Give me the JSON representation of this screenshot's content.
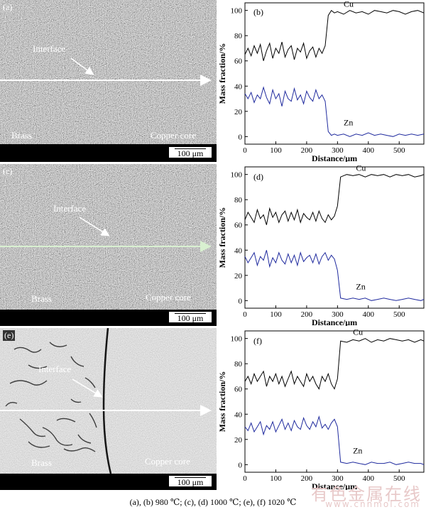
{
  "panels": [
    {
      "micro": {
        "label": "(a)",
        "interface": "Interface",
        "left_material": "Brass",
        "right_material": "Copper core",
        "scale": "100 μm",
        "line_color": "#ffffff",
        "style": "dark"
      },
      "chart": {
        "label": "(b)"
      }
    },
    {
      "micro": {
        "label": "(c)",
        "interface": "Interface",
        "left_material": "Brass",
        "right_material": "Copper core",
        "scale": "100 μm",
        "line_color": "#d8f0d0",
        "style": "dark"
      },
      "chart": {
        "label": "(d)"
      }
    },
    {
      "micro": {
        "label": "(e)",
        "interface": "Interface",
        "left_material": "Brass",
        "right_material": "Copper core",
        "scale": "100 μm",
        "line_color": "#ffffff",
        "style": "light"
      },
      "chart": {
        "label": "(f)"
      }
    }
  ],
  "chart_data": [
    {
      "type": "line",
      "xlabel": "Distance/μm",
      "ylabel": "Mass fraction/%",
      "xlim": [
        0,
        580
      ],
      "ylim": [
        -6,
        106
      ],
      "xticks": [
        0,
        100,
        200,
        300,
        400,
        500
      ],
      "yticks": [
        0,
        20,
        40,
        60,
        80,
        100
      ],
      "transition": 270,
      "series": [
        {
          "name": "Cu",
          "color": "#000000",
          "x": [
            0,
            10,
            20,
            30,
            40,
            50,
            60,
            70,
            80,
            90,
            100,
            110,
            120,
            130,
            140,
            150,
            160,
            170,
            180,
            190,
            200,
            210,
            220,
            230,
            240,
            250,
            260,
            270,
            280,
            290,
            300,
            320,
            340,
            360,
            380,
            400,
            420,
            440,
            460,
            480,
            500,
            520,
            540,
            560,
            580
          ],
          "y": [
            65,
            70,
            64,
            72,
            66,
            73,
            60,
            68,
            74,
            62,
            70,
            66,
            75,
            63,
            69,
            72,
            61,
            70,
            67,
            74,
            62,
            68,
            71,
            63,
            70,
            66,
            72,
            96,
            100,
            98,
            99,
            97,
            100,
            98,
            99,
            97,
            100,
            99,
            98,
            100,
            99,
            97,
            99,
            100,
            98
          ]
        },
        {
          "name": "Zn",
          "color": "#1f2a9e",
          "x": [
            0,
            10,
            20,
            30,
            40,
            50,
            60,
            70,
            80,
            90,
            100,
            110,
            120,
            130,
            140,
            150,
            160,
            170,
            180,
            190,
            200,
            210,
            220,
            230,
            240,
            250,
            260,
            270,
            280,
            290,
            300,
            320,
            340,
            360,
            380,
            400,
            420,
            440,
            460,
            480,
            500,
            520,
            540,
            560,
            580
          ],
          "y": [
            34,
            30,
            35,
            27,
            33,
            30,
            39,
            31,
            26,
            37,
            30,
            34,
            24,
            36,
            30,
            28,
            38,
            29,
            33,
            26,
            36,
            31,
            28,
            37,
            30,
            33,
            28,
            4,
            1,
            2,
            1,
            2,
            0,
            2,
            1,
            3,
            1,
            2,
            1,
            0,
            2,
            1,
            2,
            1,
            2
          ]
        }
      ]
    },
    {
      "type": "line",
      "xlabel": "Distance/μm",
      "ylabel": "Mass fraction/%",
      "xlim": [
        0,
        580
      ],
      "ylim": [
        -6,
        106
      ],
      "xticks": [
        0,
        100,
        200,
        300,
        400,
        500
      ],
      "yticks": [
        0,
        20,
        40,
        60,
        80,
        100
      ],
      "transition": 310,
      "series": [
        {
          "name": "Cu",
          "color": "#000000",
          "x": [
            0,
            10,
            20,
            30,
            40,
            50,
            60,
            70,
            80,
            90,
            100,
            110,
            120,
            130,
            140,
            150,
            160,
            170,
            180,
            190,
            200,
            210,
            220,
            230,
            240,
            250,
            260,
            270,
            280,
            290,
            300,
            310,
            330,
            350,
            370,
            390,
            410,
            430,
            450,
            470,
            490,
            510,
            530,
            550,
            570,
            580
          ],
          "y": [
            64,
            70,
            66,
            62,
            72,
            65,
            68,
            60,
            73,
            66,
            70,
            62,
            68,
            71,
            63,
            70,
            64,
            72,
            62,
            69,
            66,
            64,
            70,
            63,
            71,
            65,
            62,
            68,
            64,
            67,
            75,
            98,
            100,
            99,
            100,
            98,
            100,
            99,
            100,
            98,
            100,
            99,
            100,
            98,
            99,
            100
          ]
        },
        {
          "name": "Zn",
          "color": "#1f2a9e",
          "x": [
            0,
            10,
            20,
            30,
            40,
            50,
            60,
            70,
            80,
            90,
            100,
            110,
            120,
            130,
            140,
            150,
            160,
            170,
            180,
            190,
            200,
            210,
            220,
            230,
            240,
            250,
            260,
            270,
            280,
            290,
            300,
            310,
            330,
            350,
            370,
            390,
            410,
            430,
            450,
            470,
            490,
            510,
            530,
            550,
            570,
            580
          ],
          "y": [
            35,
            30,
            34,
            38,
            28,
            35,
            32,
            40,
            27,
            34,
            30,
            38,
            32,
            29,
            37,
            30,
            36,
            28,
            38,
            31,
            34,
            36,
            30,
            37,
            29,
            35,
            38,
            32,
            36,
            33,
            24,
            2,
            1,
            2,
            1,
            2,
            0,
            1,
            2,
            1,
            0,
            1,
            2,
            1,
            0,
            1
          ]
        }
      ]
    },
    {
      "type": "line",
      "xlabel": "Distance/μm",
      "ylabel": "Mass fraction/%",
      "xlim": [
        0,
        580
      ],
      "ylim": [
        -6,
        106
      ],
      "xticks": [
        0,
        100,
        200,
        300,
        400,
        500
      ],
      "yticks": [
        0,
        20,
        40,
        60,
        80,
        100
      ],
      "transition": 300,
      "series": [
        {
          "name": "Cu",
          "color": "#000000",
          "x": [
            0,
            10,
            20,
            30,
            40,
            50,
            60,
            70,
            80,
            90,
            100,
            110,
            120,
            130,
            140,
            150,
            160,
            170,
            180,
            190,
            200,
            210,
            220,
            230,
            240,
            250,
            260,
            270,
            280,
            290,
            300,
            310,
            330,
            350,
            370,
            390,
            410,
            430,
            450,
            470,
            490,
            510,
            530,
            550,
            570,
            580
          ],
          "y": [
            66,
            70,
            64,
            72,
            66,
            70,
            74,
            62,
            70,
            66,
            72,
            64,
            70,
            62,
            68,
            74,
            64,
            70,
            66,
            62,
            72,
            66,
            70,
            64,
            60,
            70,
            66,
            72,
            64,
            60,
            68,
            98,
            97,
            99,
            98,
            100,
            97,
            99,
            98,
            100,
            99,
            98,
            99,
            97,
            99,
            98
          ]
        },
        {
          "name": "Zn",
          "color": "#1f2a9e",
          "x": [
            0,
            10,
            20,
            30,
            40,
            50,
            60,
            70,
            80,
            90,
            100,
            110,
            120,
            130,
            140,
            150,
            160,
            170,
            180,
            190,
            200,
            210,
            220,
            230,
            240,
            250,
            260,
            270,
            280,
            290,
            300,
            310,
            330,
            350,
            370,
            390,
            410,
            430,
            450,
            470,
            490,
            510,
            530,
            550,
            570,
            580
          ],
          "y": [
            30,
            27,
            33,
            26,
            30,
            34,
            24,
            31,
            28,
            34,
            26,
            31,
            36,
            28,
            33,
            27,
            35,
            30,
            28,
            37,
            31,
            28,
            34,
            30,
            38,
            29,
            32,
            28,
            33,
            36,
            30,
            2,
            1,
            2,
            1,
            0,
            2,
            1,
            1,
            2,
            0,
            1,
            2,
            1,
            1,
            0
          ]
        }
      ]
    }
  ],
  "caption": "(a), (b) 980 ℃; (c), (d) 1000 ℃; (e), (f) 1020 ℃",
  "watermark": {
    "cn": "有色金属在线",
    "url": "www.cnnmol.com"
  }
}
